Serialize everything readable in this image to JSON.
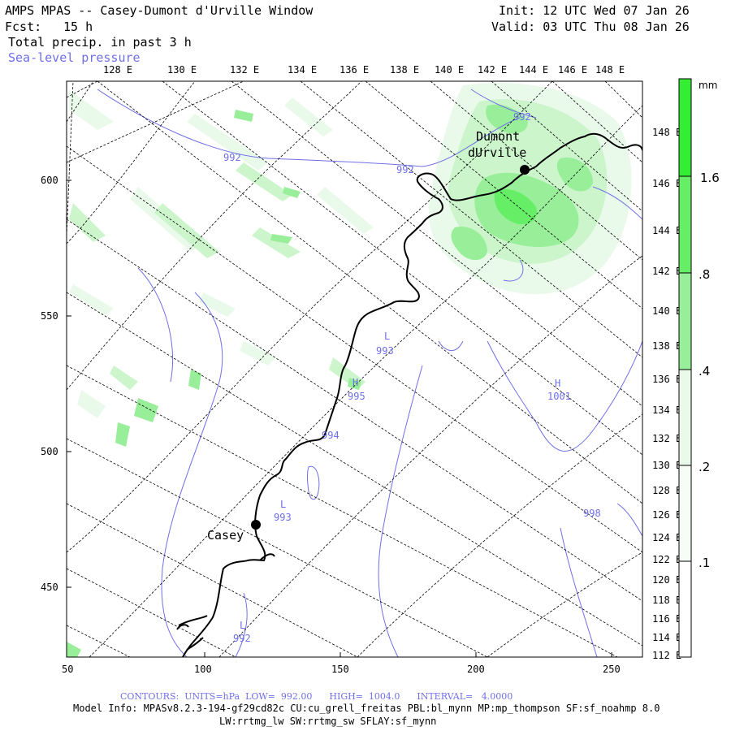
{
  "header": {
    "title": "AMPS MPAS -- Casey-Dumont d'Urville Window",
    "init": "Init: 12 UTC Wed 07 Jan 26",
    "valid": "Valid: 03 UTC Thu 08 Jan 26",
    "fcst_label": "Fcst:",
    "fcst_value": "15 h",
    "field_label": "Total precip. in past 3 h",
    "overlay_label": "Sea-level pressure"
  },
  "axes": {
    "top_lon": [
      "128 E",
      "130 E",
      "132 E",
      "134 E",
      "136 E",
      "138 E",
      "140 E",
      "142 E",
      "144 E",
      "146 E",
      "148 E"
    ],
    "right_lat": [
      "148 E",
      "146 E",
      "144 E",
      "142 E",
      "140 E",
      "138 E",
      "136 E",
      "134 E",
      "132 E",
      "130 E",
      "128 E",
      "126 E",
      "124 E",
      "122 E",
      "120 E",
      "118 E",
      "116 E",
      "114 E",
      "112 E"
    ],
    "left_y": [
      "600",
      "550",
      "500",
      "450"
    ],
    "bottom_x": [
      "50",
      "100",
      "150",
      "200",
      "250"
    ]
  },
  "colorbar": {
    "unit": "mm",
    "labels": [
      "1.6",
      ".8",
      ".4",
      ".2",
      ".1"
    ],
    "colors": [
      "#33ee33",
      "#66ee66",
      "#99ee99",
      "#ccf5cc",
      "#eafaea",
      "#ffffff"
    ]
  },
  "places": {
    "dumont_line1": "Dumont",
    "dumont_line2": "dUrville",
    "casey": "Casey"
  },
  "pressure_labels": {
    "p992a": "992",
    "p992b": "992",
    "p992c": "992",
    "p992d": "992",
    "p993a": "993",
    "p993b": "993",
    "p995": "995",
    "p1001": "1001",
    "p998": "998",
    "p994": "994",
    "L": "L",
    "H": "H"
  },
  "footer": {
    "contours": "CONTOURS:  UNITS=hPa  LOW=  992.00      HIGH=  1004.0      INTERVAL=   4.0000",
    "model_info": "Model Info: MPASv8.2.3-194-gf29cd82c CU:cu_grell_freitas PBL:bl_mynn MP:mp_thompson SF:sf_noahmp 8.0",
    "model_info2": "LW:rrtmg_lw SW:rrtmg_sw SFLAY:sf_mynn"
  },
  "colors": {
    "grid": "#000000",
    "isobar": "#6f6fe8",
    "coast": "#000000"
  }
}
